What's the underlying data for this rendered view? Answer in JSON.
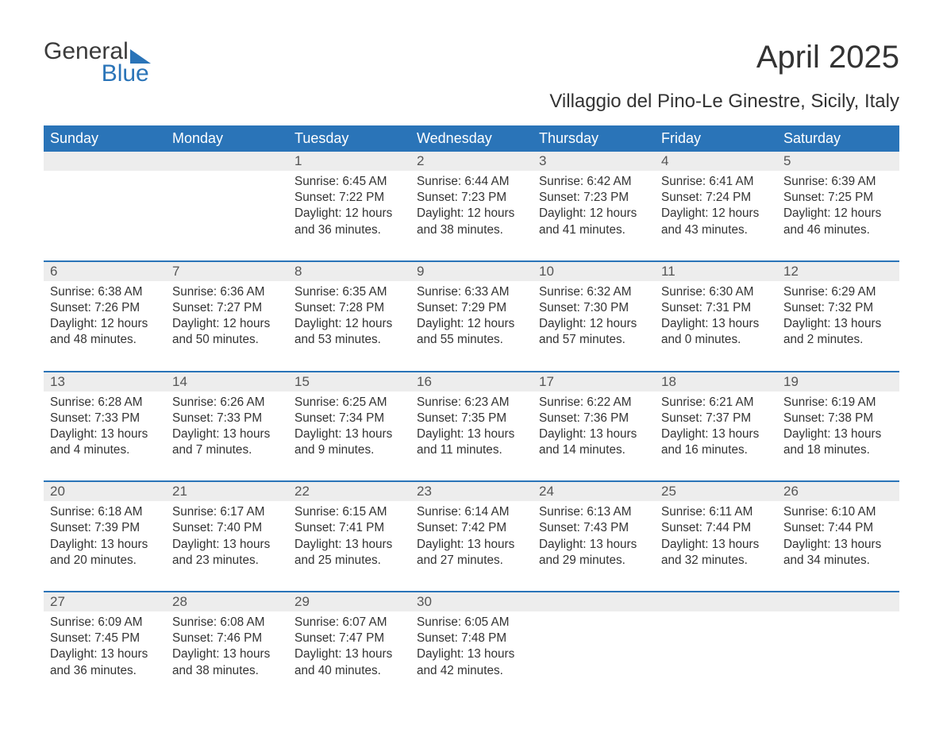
{
  "logo": {
    "word1": "General",
    "word2": "Blue",
    "icon_color": "#2a74b8",
    "text_color": "#3b3b3b"
  },
  "title": "April 2025",
  "location": "Villaggio del Pino-Le Ginestre, Sicily, Italy",
  "colors": {
    "header_bg": "#2a74b8",
    "header_text": "#ffffff",
    "daynum_bg": "#ededed",
    "daynum_text": "#555555",
    "body_text": "#333333",
    "week_divider": "#2a74b8",
    "page_bg": "#ffffff"
  },
  "day_headers": [
    "Sunday",
    "Monday",
    "Tuesday",
    "Wednesday",
    "Thursday",
    "Friday",
    "Saturday"
  ],
  "weeks": [
    [
      null,
      null,
      {
        "date": "1",
        "sunrise": "Sunrise: 6:45 AM",
        "sunset": "Sunset: 7:22 PM",
        "daylight1": "Daylight: 12 hours",
        "daylight2": "and 36 minutes."
      },
      {
        "date": "2",
        "sunrise": "Sunrise: 6:44 AM",
        "sunset": "Sunset: 7:23 PM",
        "daylight1": "Daylight: 12 hours",
        "daylight2": "and 38 minutes."
      },
      {
        "date": "3",
        "sunrise": "Sunrise: 6:42 AM",
        "sunset": "Sunset: 7:23 PM",
        "daylight1": "Daylight: 12 hours",
        "daylight2": "and 41 minutes."
      },
      {
        "date": "4",
        "sunrise": "Sunrise: 6:41 AM",
        "sunset": "Sunset: 7:24 PM",
        "daylight1": "Daylight: 12 hours",
        "daylight2": "and 43 minutes."
      },
      {
        "date": "5",
        "sunrise": "Sunrise: 6:39 AM",
        "sunset": "Sunset: 7:25 PM",
        "daylight1": "Daylight: 12 hours",
        "daylight2": "and 46 minutes."
      }
    ],
    [
      {
        "date": "6",
        "sunrise": "Sunrise: 6:38 AM",
        "sunset": "Sunset: 7:26 PM",
        "daylight1": "Daylight: 12 hours",
        "daylight2": "and 48 minutes."
      },
      {
        "date": "7",
        "sunrise": "Sunrise: 6:36 AM",
        "sunset": "Sunset: 7:27 PM",
        "daylight1": "Daylight: 12 hours",
        "daylight2": "and 50 minutes."
      },
      {
        "date": "8",
        "sunrise": "Sunrise: 6:35 AM",
        "sunset": "Sunset: 7:28 PM",
        "daylight1": "Daylight: 12 hours",
        "daylight2": "and 53 minutes."
      },
      {
        "date": "9",
        "sunrise": "Sunrise: 6:33 AM",
        "sunset": "Sunset: 7:29 PM",
        "daylight1": "Daylight: 12 hours",
        "daylight2": "and 55 minutes."
      },
      {
        "date": "10",
        "sunrise": "Sunrise: 6:32 AM",
        "sunset": "Sunset: 7:30 PM",
        "daylight1": "Daylight: 12 hours",
        "daylight2": "and 57 minutes."
      },
      {
        "date": "11",
        "sunrise": "Sunrise: 6:30 AM",
        "sunset": "Sunset: 7:31 PM",
        "daylight1": "Daylight: 13 hours",
        "daylight2": "and 0 minutes."
      },
      {
        "date": "12",
        "sunrise": "Sunrise: 6:29 AM",
        "sunset": "Sunset: 7:32 PM",
        "daylight1": "Daylight: 13 hours",
        "daylight2": "and 2 minutes."
      }
    ],
    [
      {
        "date": "13",
        "sunrise": "Sunrise: 6:28 AM",
        "sunset": "Sunset: 7:33 PM",
        "daylight1": "Daylight: 13 hours",
        "daylight2": "and 4 minutes."
      },
      {
        "date": "14",
        "sunrise": "Sunrise: 6:26 AM",
        "sunset": "Sunset: 7:33 PM",
        "daylight1": "Daylight: 13 hours",
        "daylight2": "and 7 minutes."
      },
      {
        "date": "15",
        "sunrise": "Sunrise: 6:25 AM",
        "sunset": "Sunset: 7:34 PM",
        "daylight1": "Daylight: 13 hours",
        "daylight2": "and 9 minutes."
      },
      {
        "date": "16",
        "sunrise": "Sunrise: 6:23 AM",
        "sunset": "Sunset: 7:35 PM",
        "daylight1": "Daylight: 13 hours",
        "daylight2": "and 11 minutes."
      },
      {
        "date": "17",
        "sunrise": "Sunrise: 6:22 AM",
        "sunset": "Sunset: 7:36 PM",
        "daylight1": "Daylight: 13 hours",
        "daylight2": "and 14 minutes."
      },
      {
        "date": "18",
        "sunrise": "Sunrise: 6:21 AM",
        "sunset": "Sunset: 7:37 PM",
        "daylight1": "Daylight: 13 hours",
        "daylight2": "and 16 minutes."
      },
      {
        "date": "19",
        "sunrise": "Sunrise: 6:19 AM",
        "sunset": "Sunset: 7:38 PM",
        "daylight1": "Daylight: 13 hours",
        "daylight2": "and 18 minutes."
      }
    ],
    [
      {
        "date": "20",
        "sunrise": "Sunrise: 6:18 AM",
        "sunset": "Sunset: 7:39 PM",
        "daylight1": "Daylight: 13 hours",
        "daylight2": "and 20 minutes."
      },
      {
        "date": "21",
        "sunrise": "Sunrise: 6:17 AM",
        "sunset": "Sunset: 7:40 PM",
        "daylight1": "Daylight: 13 hours",
        "daylight2": "and 23 minutes."
      },
      {
        "date": "22",
        "sunrise": "Sunrise: 6:15 AM",
        "sunset": "Sunset: 7:41 PM",
        "daylight1": "Daylight: 13 hours",
        "daylight2": "and 25 minutes."
      },
      {
        "date": "23",
        "sunrise": "Sunrise: 6:14 AM",
        "sunset": "Sunset: 7:42 PM",
        "daylight1": "Daylight: 13 hours",
        "daylight2": "and 27 minutes."
      },
      {
        "date": "24",
        "sunrise": "Sunrise: 6:13 AM",
        "sunset": "Sunset: 7:43 PM",
        "daylight1": "Daylight: 13 hours",
        "daylight2": "and 29 minutes."
      },
      {
        "date": "25",
        "sunrise": "Sunrise: 6:11 AM",
        "sunset": "Sunset: 7:44 PM",
        "daylight1": "Daylight: 13 hours",
        "daylight2": "and 32 minutes."
      },
      {
        "date": "26",
        "sunrise": "Sunrise: 6:10 AM",
        "sunset": "Sunset: 7:44 PM",
        "daylight1": "Daylight: 13 hours",
        "daylight2": "and 34 minutes."
      }
    ],
    [
      {
        "date": "27",
        "sunrise": "Sunrise: 6:09 AM",
        "sunset": "Sunset: 7:45 PM",
        "daylight1": "Daylight: 13 hours",
        "daylight2": "and 36 minutes."
      },
      {
        "date": "28",
        "sunrise": "Sunrise: 6:08 AM",
        "sunset": "Sunset: 7:46 PM",
        "daylight1": "Daylight: 13 hours",
        "daylight2": "and 38 minutes."
      },
      {
        "date": "29",
        "sunrise": "Sunrise: 6:07 AM",
        "sunset": "Sunset: 7:47 PM",
        "daylight1": "Daylight: 13 hours",
        "daylight2": "and 40 minutes."
      },
      {
        "date": "30",
        "sunrise": "Sunrise: 6:05 AM",
        "sunset": "Sunset: 7:48 PM",
        "daylight1": "Daylight: 13 hours",
        "daylight2": "and 42 minutes."
      },
      null,
      null,
      null
    ]
  ]
}
